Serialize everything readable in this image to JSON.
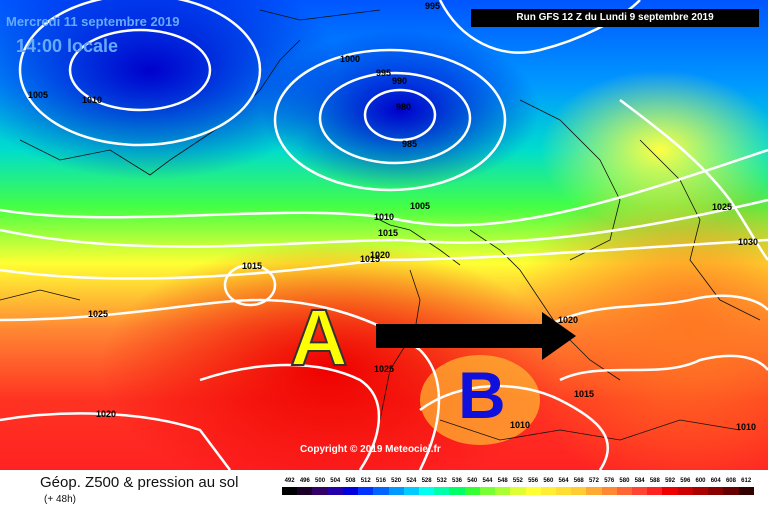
{
  "header": {
    "date": "Mercredi 11 septembre 2019",
    "time": "14:00 locale",
    "run": "Run GFS 12 Z du Lundi 9 septembre 2019"
  },
  "map": {
    "annotation_a": "A",
    "annotation_b": "B",
    "arrow": "arrow-right-icon",
    "copyright": "Copyright © 2019 Meteociel.fr",
    "isobar_labels": [
      "995",
      "1000",
      "1010",
      "995",
      "990",
      "980",
      "985",
      "1005",
      "1010",
      "1005",
      "1010",
      "1015",
      "1015",
      "1020",
      "1015",
      "1025",
      "1030",
      "1025",
      "1020",
      "1025",
      "1015",
      "1010",
      "1020",
      "1010",
      "1020",
      "1010"
    ]
  },
  "footer": {
    "title": "Géop. Z500 & pression au sol",
    "subtitle": "(+ 48h)"
  },
  "legend": {
    "ticks": [
      "492",
      "496",
      "500",
      "504",
      "508",
      "512",
      "516",
      "520",
      "524",
      "528",
      "532",
      "536",
      "540",
      "544",
      "548",
      "552",
      "556",
      "560",
      "564",
      "568",
      "572",
      "576",
      "580",
      "584",
      "588",
      "592",
      "596",
      "600",
      "604",
      "608",
      "612"
    ],
    "colors": [
      "#000000",
      "#1a0026",
      "#330066",
      "#2200aa",
      "#0000dd",
      "#0033ff",
      "#0066ff",
      "#0099ff",
      "#00ccff",
      "#00ffee",
      "#00ffaa",
      "#00ff66",
      "#33ff33",
      "#77ff33",
      "#aaff33",
      "#ddff33",
      "#ffff33",
      "#ffee33",
      "#ffdd33",
      "#ffcc33",
      "#ffaa33",
      "#ff8833",
      "#ff6633",
      "#ff4433",
      "#ff2222",
      "#ee0000",
      "#cc0000",
      "#aa0000",
      "#880000",
      "#660000",
      "#330000"
    ]
  }
}
